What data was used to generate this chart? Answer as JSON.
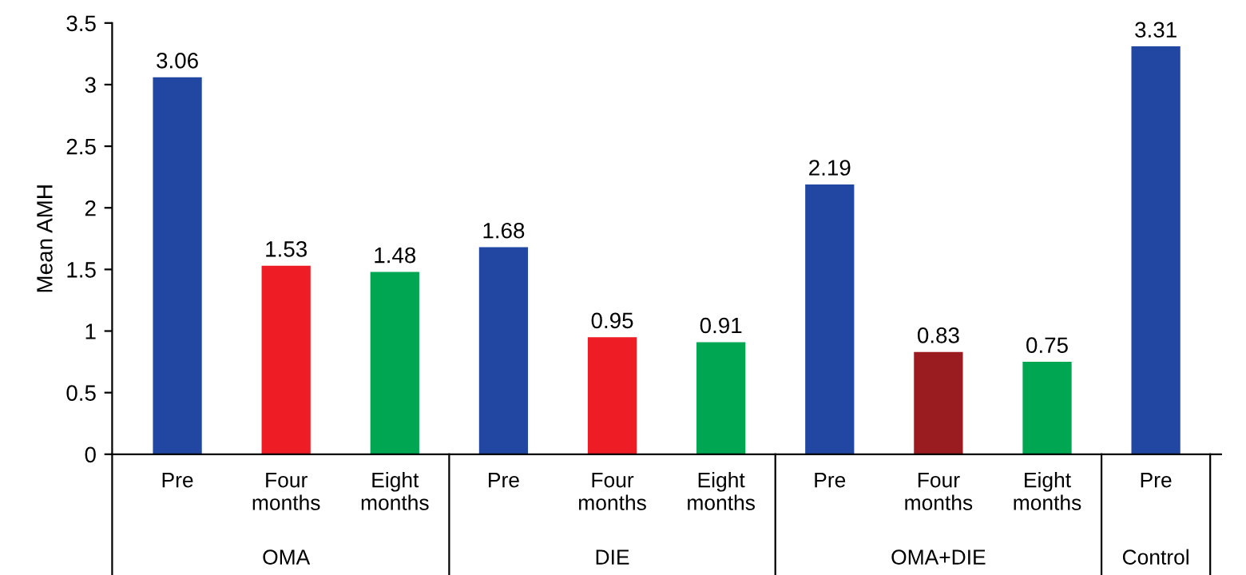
{
  "chart_data": {
    "type": "bar",
    "ylabel": "Mean AMH",
    "categories": [
      "Pre",
      "Four months",
      "Eight months",
      "Pre",
      "Four months",
      "Eight months",
      "Pre",
      "Four months",
      "Eight months",
      "Pre"
    ],
    "values": [
      3.06,
      1.53,
      1.48,
      1.68,
      0.95,
      0.91,
      2.19,
      0.83,
      0.75,
      3.31
    ],
    "colors": [
      "#2147a3",
      "#ee1c24",
      "#00a651",
      "#2147a3",
      "#ee1c24",
      "#00a651",
      "#2147a3",
      "#9b1c20",
      "#00a651",
      "#2147a3"
    ],
    "annotations": [
      "OMA",
      "DIE",
      "OMA+DIE",
      "Control"
    ],
    "ylim": [
      0,
      3.5
    ],
    "yticks": [
      0,
      0.5,
      1,
      1.5,
      2,
      2.5,
      3,
      3.5
    ],
    "data_labels": true,
    "grid": false
  }
}
